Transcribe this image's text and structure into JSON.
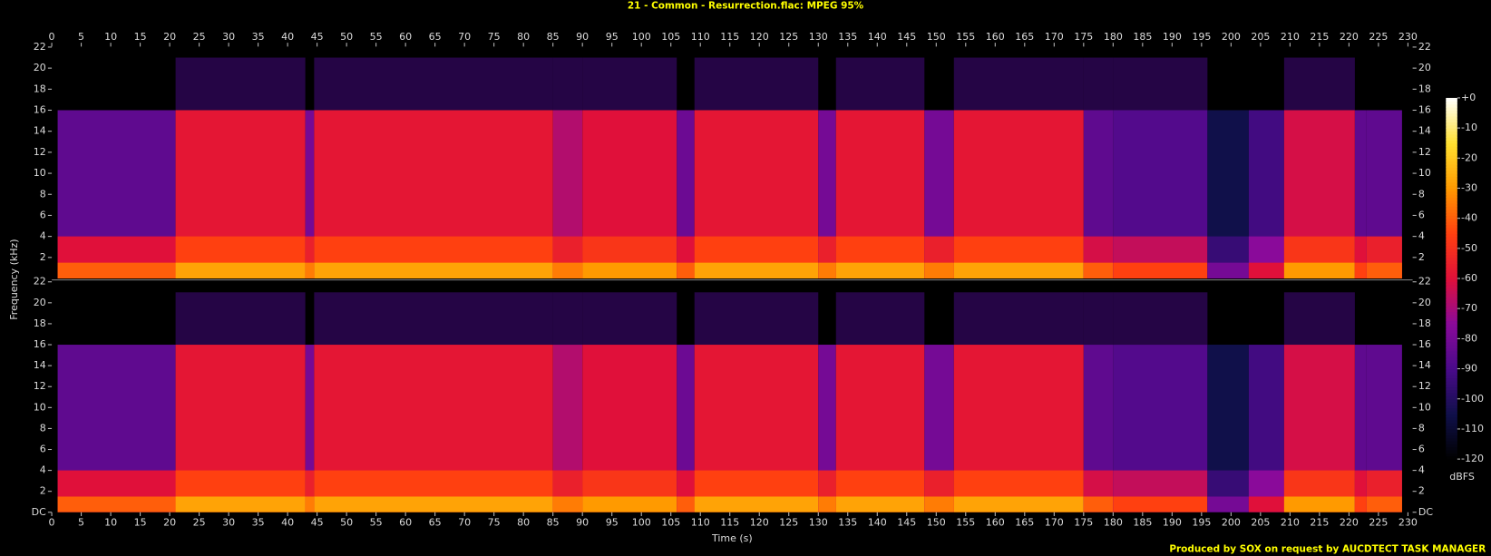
{
  "chart_data": {
    "type": "spectrogram",
    "title": "21 - Common - Resurrection.flac: MPEG 95%",
    "x_label": "Time (s)",
    "y_label": "Frequency (kHz)",
    "footer": "Produced by SOX on request by AUCDTECT TASK MANAGER",
    "xlim": [
      0,
      230.8
    ],
    "xticks": [
      0,
      5,
      10,
      15,
      20,
      25,
      30,
      35,
      40,
      45,
      50,
      55,
      60,
      65,
      70,
      75,
      80,
      85,
      90,
      95,
      100,
      105,
      110,
      115,
      120,
      125,
      130,
      135,
      140,
      145,
      150,
      155,
      160,
      165,
      170,
      175,
      180,
      185,
      190,
      195,
      200,
      205,
      210,
      215,
      220,
      225,
      230
    ],
    "channels": [
      {
        "ylim": [
          0,
          22.05
        ],
        "yticks": [
          2,
          4,
          6,
          8,
          10,
          12,
          14,
          16,
          18,
          20,
          22
        ]
      },
      {
        "ylim": [
          0,
          22.05
        ],
        "yticks": [
          {
            "value": 0,
            "label": "DC"
          },
          2,
          4,
          6,
          8,
          10,
          12,
          14,
          16,
          18,
          20,
          22
        ]
      }
    ],
    "colorbar": {
      "label": "dBFS",
      "clim": [
        -120,
        0
      ],
      "ticks": [
        {
          "value": 0,
          "label": "+0"
        },
        -10,
        -20,
        -30,
        -40,
        -50,
        -60,
        -70,
        -80,
        -90,
        -100,
        -110,
        -120
      ]
    },
    "bands": [
      {
        "t": [
          1,
          21
        ],
        "f": [
          0,
          16
        ],
        "db": -85
      },
      {
        "t": [
          1,
          21
        ],
        "f": [
          0,
          4
        ],
        "db": -60
      },
      {
        "t": [
          1,
          21
        ],
        "f": [
          0,
          1.5
        ],
        "db": -40
      },
      {
        "t": [
          21,
          43
        ],
        "f": [
          0,
          16
        ],
        "db": -58
      },
      {
        "t": [
          21,
          43
        ],
        "f": [
          0,
          4
        ],
        "db": -45
      },
      {
        "t": [
          21,
          43
        ],
        "f": [
          0,
          1.5
        ],
        "db": -28
      },
      {
        "t": [
          21,
          43
        ],
        "f": [
          16,
          21
        ],
        "db": -90
      },
      {
        "t": [
          43,
          44.5
        ],
        "f": [
          0,
          16
        ],
        "db": -80
      },
      {
        "t": [
          43,
          44.5
        ],
        "f": [
          0,
          4
        ],
        "db": -55
      },
      {
        "t": [
          43,
          44.5
        ],
        "f": [
          0,
          1.5
        ],
        "db": -35
      },
      {
        "t": [
          44.5,
          85
        ],
        "f": [
          0,
          16
        ],
        "db": -58
      },
      {
        "t": [
          44.5,
          85
        ],
        "f": [
          0,
          4
        ],
        "db": -45
      },
      {
        "t": [
          44.5,
          85
        ],
        "f": [
          0,
          1.5
        ],
        "db": -28
      },
      {
        "t": [
          44.5,
          85
        ],
        "f": [
          16,
          21
        ],
        "db": -90
      },
      {
        "t": [
          85,
          90
        ],
        "f": [
          0,
          16
        ],
        "db": -68
      },
      {
        "t": [
          85,
          90
        ],
        "f": [
          0,
          4
        ],
        "db": -55
      },
      {
        "t": [
          85,
          90
        ],
        "f": [
          0,
          1.5
        ],
        "db": -35
      },
      {
        "t": [
          85,
          90
        ],
        "f": [
          16,
          21
        ],
        "db": -90
      },
      {
        "t": [
          90,
          106
        ],
        "f": [
          0,
          16
        ],
        "db": -60
      },
      {
        "t": [
          90,
          106
        ],
        "f": [
          0,
          4
        ],
        "db": -48
      },
      {
        "t": [
          90,
          106
        ],
        "f": [
          0,
          1.5
        ],
        "db": -30
      },
      {
        "t": [
          90,
          106
        ],
        "f": [
          16,
          21
        ],
        "db": -90
      },
      {
        "t": [
          106,
          109
        ],
        "f": [
          0,
          16
        ],
        "db": -82
      },
      {
        "t": [
          106,
          109
        ],
        "f": [
          0,
          4
        ],
        "db": -60
      },
      {
        "t": [
          106,
          109
        ],
        "f": [
          0,
          1.5
        ],
        "db": -40
      },
      {
        "t": [
          109,
          130
        ],
        "f": [
          0,
          16
        ],
        "db": -58
      },
      {
        "t": [
          109,
          130
        ],
        "f": [
          0,
          4
        ],
        "db": -45
      },
      {
        "t": [
          109,
          130
        ],
        "f": [
          0,
          1.5
        ],
        "db": -28
      },
      {
        "t": [
          109,
          130
        ],
        "f": [
          16,
          21
        ],
        "db": -90
      },
      {
        "t": [
          130,
          133
        ],
        "f": [
          0,
          16
        ],
        "db": -80
      },
      {
        "t": [
          130,
          133
        ],
        "f": [
          0,
          4
        ],
        "db": -55
      },
      {
        "t": [
          130,
          133
        ],
        "f": [
          0,
          1.5
        ],
        "db": -35
      },
      {
        "t": [
          133,
          148
        ],
        "f": [
          0,
          16
        ],
        "db": -58
      },
      {
        "t": [
          133,
          148
        ],
        "f": [
          0,
          4
        ],
        "db": -45
      },
      {
        "t": [
          133,
          148
        ],
        "f": [
          0,
          1.5
        ],
        "db": -28
      },
      {
        "t": [
          133,
          148
        ],
        "f": [
          16,
          21
        ],
        "db": -90
      },
      {
        "t": [
          148,
          153
        ],
        "f": [
          0,
          16
        ],
        "db": -80
      },
      {
        "t": [
          148,
          153
        ],
        "f": [
          0,
          4
        ],
        "db": -55
      },
      {
        "t": [
          148,
          153
        ],
        "f": [
          0,
          1.5
        ],
        "db": -35
      },
      {
        "t": [
          153,
          175
        ],
        "f": [
          0,
          16
        ],
        "db": -58
      },
      {
        "t": [
          153,
          175
        ],
        "f": [
          0,
          4
        ],
        "db": -45
      },
      {
        "t": [
          153,
          175
        ],
        "f": [
          0,
          1.5
        ],
        "db": -28
      },
      {
        "t": [
          153,
          175
        ],
        "f": [
          16,
          21
        ],
        "db": -90
      },
      {
        "t": [
          175,
          180
        ],
        "f": [
          0,
          16
        ],
        "db": -85
      },
      {
        "t": [
          175,
          180
        ],
        "f": [
          0,
          4
        ],
        "db": -62
      },
      {
        "t": [
          175,
          180
        ],
        "f": [
          0,
          1.5
        ],
        "db": -40
      },
      {
        "t": [
          175,
          180
        ],
        "f": [
          16,
          21
        ],
        "db": -90
      },
      {
        "t": [
          180,
          196
        ],
        "f": [
          0,
          16
        ],
        "db": -88
      },
      {
        "t": [
          180,
          196
        ],
        "f": [
          0,
          4
        ],
        "db": -65
      },
      {
        "t": [
          180,
          196
        ],
        "f": [
          0,
          1.5
        ],
        "db": -45
      },
      {
        "t": [
          180,
          196
        ],
        "f": [
          16,
          21
        ],
        "db": -90
      },
      {
        "t": [
          196,
          203
        ],
        "f": [
          0,
          16
        ],
        "db": -105
      },
      {
        "t": [
          196,
          203
        ],
        "f": [
          0,
          4
        ],
        "db": -95
      },
      {
        "t": [
          196,
          203
        ],
        "f": [
          0,
          1.5
        ],
        "db": -80
      },
      {
        "t": [
          203,
          209
        ],
        "f": [
          0,
          16
        ],
        "db": -92
      },
      {
        "t": [
          203,
          209
        ],
        "f": [
          0,
          4
        ],
        "db": -75
      },
      {
        "t": [
          203,
          209
        ],
        "f": [
          0,
          1.5
        ],
        "db": -60
      },
      {
        "t": [
          209,
          221
        ],
        "f": [
          0,
          16
        ],
        "db": -62
      },
      {
        "t": [
          209,
          221
        ],
        "f": [
          0,
          4
        ],
        "db": -48
      },
      {
        "t": [
          209,
          221
        ],
        "f": [
          0,
          1.5
        ],
        "db": -30
      },
      {
        "t": [
          209,
          221
        ],
        "f": [
          16,
          21
        ],
        "db": -90
      },
      {
        "t": [
          221,
          223
        ],
        "f": [
          0,
          16
        ],
        "db": -85
      },
      {
        "t": [
          221,
          223
        ],
        "f": [
          0,
          4
        ],
        "db": -60
      },
      {
        "t": [
          221,
          223
        ],
        "f": [
          0,
          1.5
        ],
        "db": -45
      },
      {
        "t": [
          223,
          229
        ],
        "f": [
          0,
          16
        ],
        "db": -85
      },
      {
        "t": [
          223,
          229
        ],
        "f": [
          0,
          4
        ],
        "db": -55
      },
      {
        "t": [
          223,
          229
        ],
        "f": [
          0,
          1.5
        ],
        "db": -40
      }
    ]
  }
}
